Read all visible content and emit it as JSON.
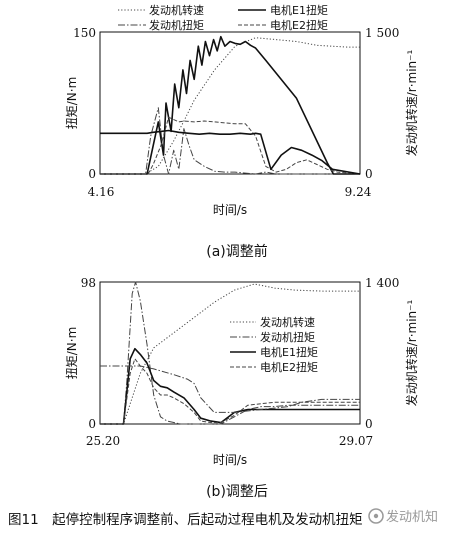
{
  "figure_caption": "图11　起停控制程序调整前、后起动过程电机及发动机扭矩",
  "watermark": "发动机知",
  "chart_data": [
    {
      "type": "line",
      "subtitle": "(a)调整前",
      "xlabel": "时间/s",
      "ylabel": "扭矩/N·m",
      "y2label": "发动机转速/r·min⁻¹",
      "xlim": [
        4.16,
        9.24
      ],
      "ylim": [
        0,
        150
      ],
      "y2lim": [
        0,
        1500
      ],
      "x_tick_labels": [
        "4.16",
        "9.24"
      ],
      "y_tick_labels": [
        "0",
        "150"
      ],
      "y2_tick_labels": [
        "0",
        "1 500"
      ],
      "grid": false,
      "legend_position": "top",
      "series": [
        {
          "name": "发动机转速",
          "axis": "right",
          "style": "dotted",
          "x": [
            4.16,
            5.05,
            5.3,
            5.6,
            5.8,
            6.0,
            6.4,
            6.8,
            7.2,
            8.0,
            8.4,
            9.0,
            9.24
          ],
          "y": [
            0,
            0,
            80,
            350,
            560,
            780,
            1100,
            1350,
            1440,
            1400,
            1360,
            1340,
            1340
          ]
        },
        {
          "name": "发动机扭矩",
          "axis": "left",
          "style": "dashdot",
          "x": [
            4.16,
            5.05,
            5.15,
            5.3,
            5.4,
            5.5,
            5.6,
            5.7,
            5.8,
            5.9,
            6.0,
            6.2,
            6.4,
            6.6,
            6.8,
            7.0,
            7.2,
            7.4,
            7.6,
            9.24
          ],
          "y": [
            0,
            0,
            40,
            70,
            20,
            0,
            25,
            5,
            48,
            30,
            15,
            8,
            3,
            2,
            2,
            1,
            0,
            2,
            0,
            0
          ]
        },
        {
          "name": "电机E1扭矩",
          "axis": "left",
          "style": "solid",
          "x": [
            4.16,
            5.08,
            5.2,
            5.3,
            5.4,
            5.45,
            5.55,
            5.62,
            5.7,
            5.78,
            5.85,
            5.92,
            6.0,
            6.08,
            6.15,
            6.22,
            6.3,
            6.38,
            6.45,
            6.52,
            6.6,
            6.7,
            6.8,
            6.9,
            7.0,
            7.1,
            7.2,
            7.4,
            8.0,
            8.6,
            8.72,
            9.24
          ],
          "y": [
            0,
            0,
            30,
            55,
            20,
            75,
            45,
            95,
            70,
            110,
            85,
            120,
            100,
            135,
            115,
            140,
            125,
            142,
            130,
            145,
            135,
            140,
            138,
            137,
            140,
            136,
            133,
            120,
            80,
            12,
            0,
            0
          ]
        },
        {
          "name": "电机E2扭矩",
          "axis": "left",
          "style": "dashed",
          "x": [
            4.16,
            5.1,
            5.2,
            5.35,
            5.5,
            5.7,
            5.8,
            6.0,
            6.2,
            6.4,
            6.6,
            6.8,
            7.0,
            7.2,
            7.4,
            7.6,
            7.8,
            8.0,
            8.2,
            8.4,
            8.6,
            8.8,
            9.24
          ],
          "y": [
            0,
            0,
            10,
            30,
            60,
            55,
            56,
            55,
            56,
            55,
            54,
            53,
            53,
            40,
            8,
            2,
            5,
            12,
            15,
            10,
            5,
            2,
            0
          ]
        },
        {
          "name": "",
          "axis": "left",
          "style": "solid",
          "x": [
            4.16,
            5.08,
            5.2,
            5.35,
            5.5,
            5.7,
            5.9,
            6.1,
            6.3,
            6.5,
            6.7,
            6.9,
            7.1,
            7.2,
            7.3,
            7.5,
            7.7,
            7.9,
            8.1,
            8.3,
            8.5,
            8.7,
            9.24
          ],
          "y": [
            43,
            43,
            44,
            45,
            46,
            44,
            43,
            42,
            43,
            42,
            42,
            43,
            42,
            43,
            42,
            5,
            20,
            28,
            25,
            20,
            14,
            5,
            0
          ]
        }
      ]
    },
    {
      "type": "line",
      "subtitle": "(b)调整后",
      "xlabel": "时间/s",
      "ylabel": "扭矩/N·m",
      "y2label": "发动机转速/r·min⁻¹",
      "xlim": [
        25.2,
        29.07
      ],
      "ylim": [
        0,
        98
      ],
      "y2lim": [
        0,
        1400
      ],
      "x_tick_labels": [
        "25.20",
        "29.07"
      ],
      "y_tick_labels": [
        "0",
        "98"
      ],
      "y2_tick_labels": [
        "0",
        "1 400"
      ],
      "grid": false,
      "legend_position": "center-right",
      "series": [
        {
          "name": "发动机转速",
          "axis": "right",
          "style": "dotted",
          "x": [
            25.2,
            25.55,
            25.65,
            25.8,
            26.0,
            26.3,
            26.6,
            26.9,
            27.2,
            27.5,
            27.8,
            28.1,
            28.5,
            29.07
          ],
          "y": [
            0,
            0,
            200,
            500,
            750,
            900,
            1050,
            1200,
            1320,
            1380,
            1340,
            1320,
            1310,
            1310
          ]
        },
        {
          "name": "发动机扭矩",
          "axis": "left",
          "style": "dashdot",
          "x": [
            25.2,
            25.55,
            25.6,
            25.68,
            25.73,
            25.8,
            25.9,
            26.0,
            26.1,
            26.2,
            26.4,
            26.6,
            26.8,
            27.0,
            27.2,
            27.4,
            27.6,
            27.8,
            28.0,
            28.4,
            29.07
          ],
          "y": [
            0,
            0,
            30,
            90,
            98,
            85,
            55,
            20,
            5,
            2,
            0,
            0,
            0,
            0,
            5,
            10,
            12,
            12,
            13,
            13,
            13
          ]
        },
        {
          "name": "电机E1扭矩",
          "axis": "left",
          "style": "solid",
          "x": [
            25.2,
            25.55,
            25.65,
            25.72,
            25.8,
            25.9,
            26.0,
            26.1,
            26.2,
            26.3,
            26.45,
            26.6,
            26.7,
            26.85,
            27.0,
            27.2,
            27.4,
            27.6,
            27.8,
            28.0,
            28.4,
            29.07
          ],
          "y": [
            0,
            0,
            45,
            52,
            48,
            42,
            30,
            26,
            25,
            22,
            18,
            10,
            4,
            2,
            1,
            8,
            10,
            10,
            10,
            10,
            10,
            10
          ]
        },
        {
          "name": "电机E2扭矩",
          "axis": "left",
          "style": "dashed",
          "x": [
            25.2,
            25.55,
            25.65,
            25.72,
            25.8,
            25.9,
            26.0,
            26.1,
            26.2,
            26.3,
            26.45,
            26.6,
            26.7,
            26.85,
            27.0,
            27.2,
            27.4,
            27.6,
            27.8,
            28.0,
            28.4,
            29.07
          ],
          "y": [
            0,
            0,
            35,
            45,
            40,
            35,
            25,
            20,
            20,
            18,
            14,
            8,
            2,
            1,
            1,
            6,
            13,
            14,
            15,
            15,
            15,
            15
          ]
        },
        {
          "name": "",
          "axis": "left",
          "style": "dashdot",
          "x": [
            25.2,
            25.8,
            26.0,
            26.3,
            26.5,
            26.6,
            26.7,
            26.9,
            27.2,
            27.6,
            28.0,
            28.2,
            28.5,
            29.07
          ],
          "y": [
            40,
            40,
            38,
            34,
            31,
            28,
            18,
            8,
            8,
            10,
            12,
            15,
            17,
            17
          ]
        }
      ]
    }
  ]
}
